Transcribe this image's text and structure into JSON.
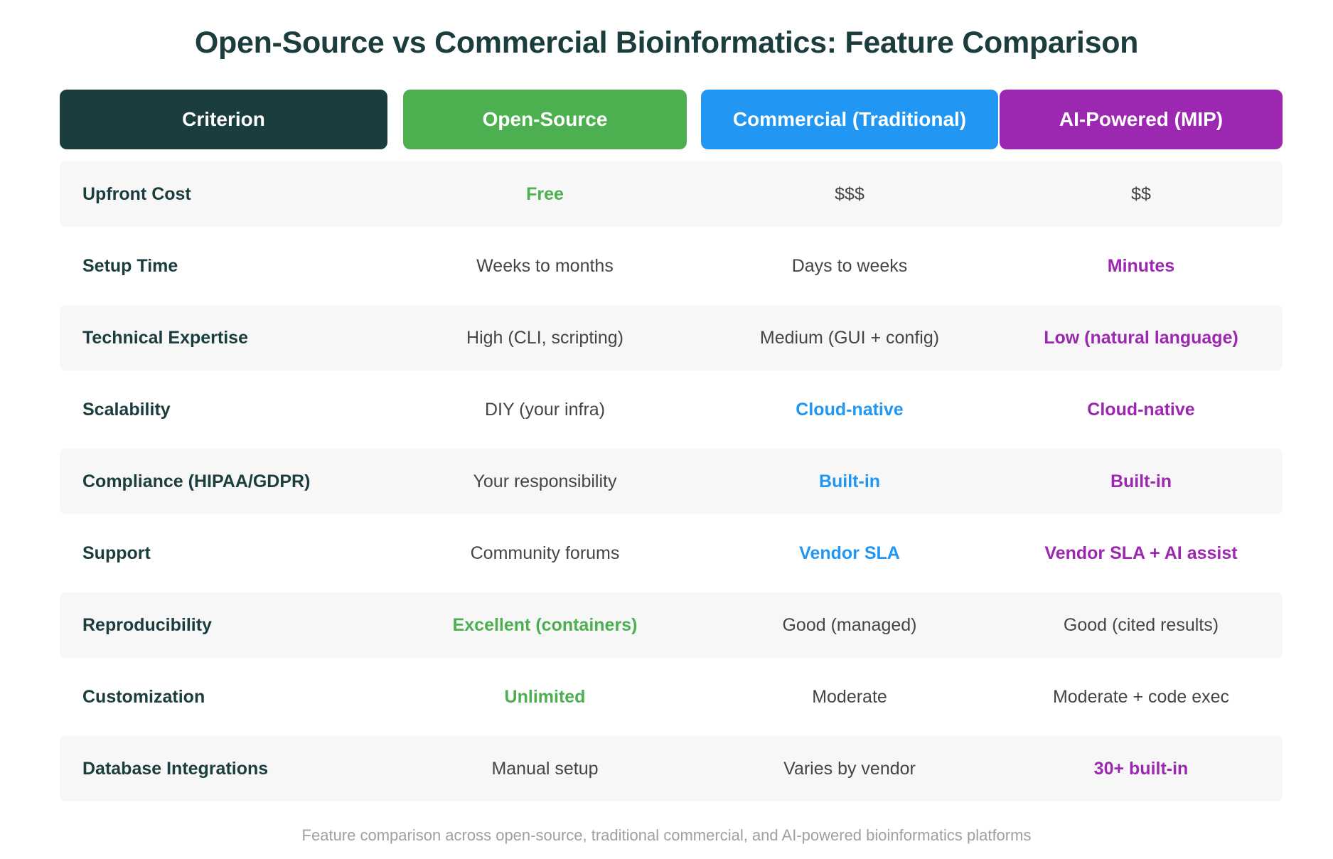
{
  "title": "Open-Source vs Commercial Bioinformatics: Feature Comparison",
  "colors": {
    "criterion_header": "#1c3d3d",
    "open_source": "#4caf50",
    "commercial": "#2196f3",
    "ai_powered": "#9c27b0",
    "row_shade": "#f7f7f7"
  },
  "headers": [
    "Criterion",
    "Open-Source",
    "Commercial (Traditional)",
    "AI-Powered (MIP)"
  ],
  "rows": [
    {
      "criterion": "Upfront Cost",
      "open_source": "Free",
      "commercial": "$$$",
      "ai_powered": "$$",
      "highlight": "open_source"
    },
    {
      "criterion": "Setup Time",
      "open_source": "Weeks to months",
      "commercial": "Days to weeks",
      "ai_powered": "Minutes",
      "highlight": "ai_powered"
    },
    {
      "criterion": "Technical Expertise",
      "open_source": "High (CLI, scripting)",
      "commercial": "Medium (GUI + config)",
      "ai_powered": "Low (natural language)",
      "highlight": "ai_powered"
    },
    {
      "criterion": "Scalability",
      "open_source": "DIY (your infra)",
      "commercial": "Cloud-native",
      "ai_powered": "Cloud-native",
      "highlight": "commercial,ai_powered"
    },
    {
      "criterion": "Compliance (HIPAA/GDPR)",
      "open_source": "Your responsibility",
      "commercial": "Built-in",
      "ai_powered": "Built-in",
      "highlight": "commercial,ai_powered"
    },
    {
      "criterion": "Support",
      "open_source": "Community forums",
      "commercial": "Vendor SLA",
      "ai_powered": "Vendor SLA + AI assist",
      "highlight": "commercial,ai_powered"
    },
    {
      "criterion": "Reproducibility",
      "open_source": "Excellent (containers)",
      "commercial": "Good (managed)",
      "ai_powered": "Good (cited results)",
      "highlight": "open_source"
    },
    {
      "criterion": "Customization",
      "open_source": "Unlimited",
      "commercial": "Moderate",
      "ai_powered": "Moderate + code exec",
      "highlight": "open_source"
    },
    {
      "criterion": "Database Integrations",
      "open_source": "Manual setup",
      "commercial": "Varies by vendor",
      "ai_powered": "30+ built-in",
      "highlight": "ai_powered"
    }
  ],
  "caption": "Feature comparison across open-source, traditional commercial, and AI-powered bioinformatics platforms"
}
